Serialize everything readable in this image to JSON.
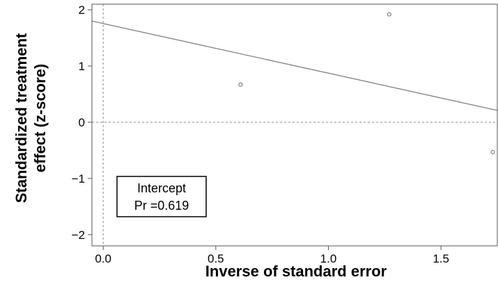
{
  "chart_data": {
    "type": "scatter",
    "title": "",
    "xlabel": "Inverse of standard error",
    "ylabel": [
      "Standardized treatment",
      "effect (z-score)"
    ],
    "xlim": [
      -0.05,
      1.75
    ],
    "ylim": [
      -2.2,
      2.1
    ],
    "x_ticks": [
      0.0,
      0.5,
      1.0,
      1.5
    ],
    "x_tick_labels": [
      "0.0",
      "0.5",
      "1.0",
      "1.5"
    ],
    "y_ticks": [
      2,
      1,
      0,
      -1,
      -2
    ],
    "y_tick_labels": [
      "2",
      "1",
      "0",
      "−1",
      "−2"
    ],
    "grid": false,
    "points": [
      {
        "x": 0.61,
        "y": 0.67
      },
      {
        "x": 1.27,
        "y": 1.92
      },
      {
        "x": 1.73,
        "y": -0.53
      }
    ],
    "regression_line": {
      "x": [
        -0.05,
        1.75
      ],
      "y": [
        1.8,
        0.21
      ]
    },
    "reference_lines": {
      "x": 0,
      "y": 0
    },
    "annotation": {
      "line1": "Intercept",
      "line2": "Pr =0.619"
    },
    "colors": {
      "points": "#666666",
      "line": "#777777",
      "axis": "#555555",
      "reference": "#888888"
    }
  }
}
